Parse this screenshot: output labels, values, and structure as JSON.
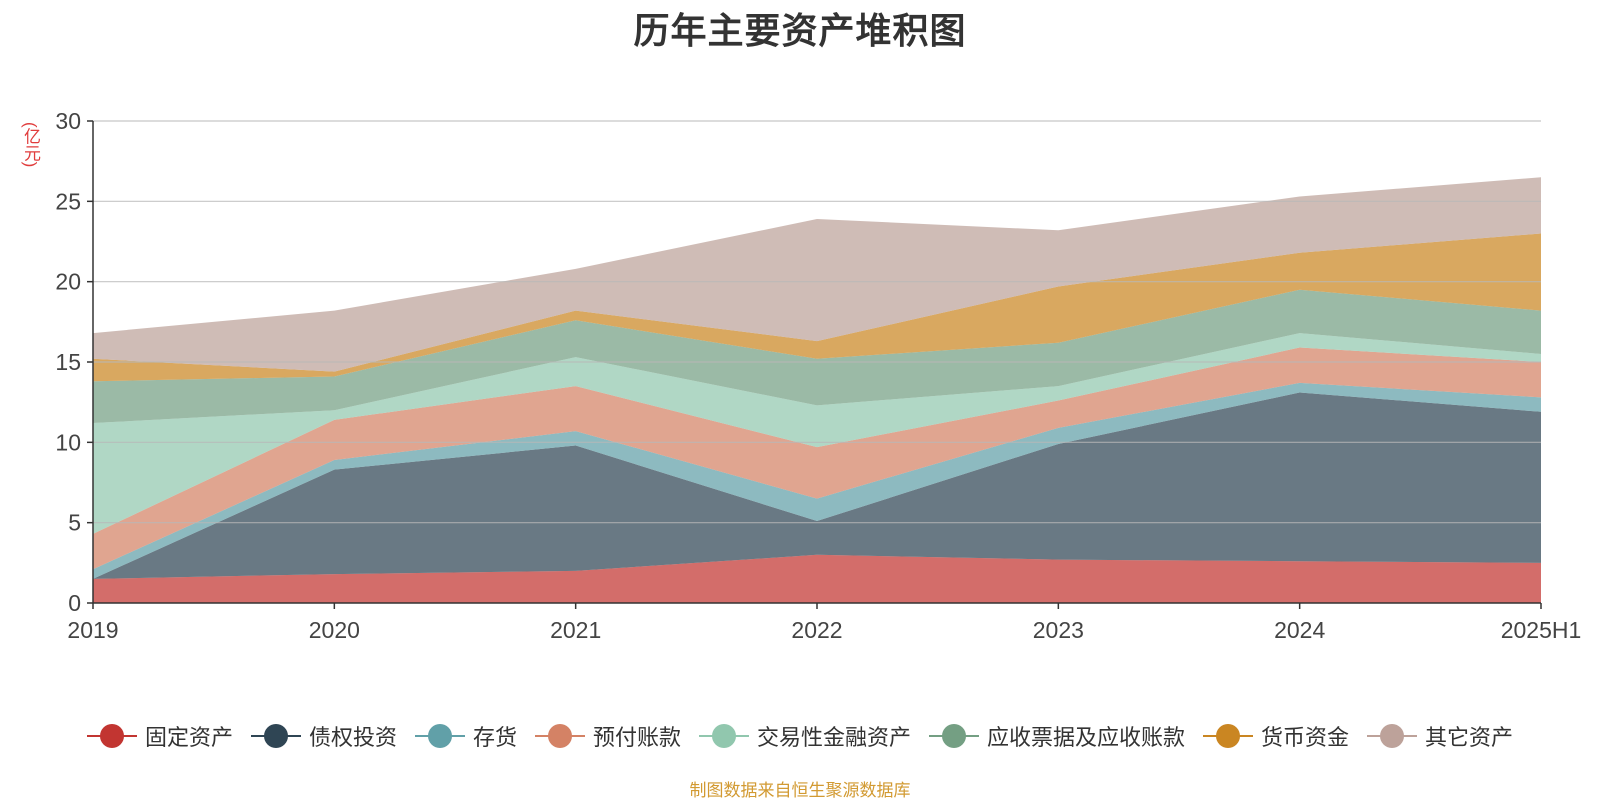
{
  "chart_data": {
    "type": "area",
    "stacked": true,
    "title": "历年主要资产堆积图",
    "ylabel": "(亿元)",
    "x": [
      "2019",
      "2020",
      "2021",
      "2022",
      "2023",
      "2024",
      "2025H1"
    ],
    "ylim": [
      0,
      30
    ],
    "yticks": [
      "0",
      "5",
      "10",
      "15",
      "20",
      "25",
      "30"
    ],
    "grid": true,
    "legend_position": "bottom",
    "series": [
      {
        "name": "固定资产",
        "color": "#c23531",
        "values": [
          1.5,
          1.8,
          2.0,
          3.0,
          2.7,
          2.6,
          2.5
        ]
      },
      {
        "name": "债权投资",
        "color": "#2f4554",
        "values": [
          0.0,
          6.5,
          7.8,
          2.1,
          7.2,
          10.5,
          9.4
        ]
      },
      {
        "name": "存货",
        "color": "#61a0a8",
        "values": [
          0.6,
          0.6,
          0.9,
          1.4,
          1.0,
          0.6,
          0.9
        ]
      },
      {
        "name": "预付账款",
        "color": "#d48265",
        "values": [
          2.2,
          2.5,
          2.8,
          3.2,
          1.7,
          2.2,
          2.2
        ]
      },
      {
        "name": "交易性金融资产",
        "color": "#91c7ae",
        "values": [
          6.9,
          0.6,
          1.8,
          2.6,
          0.9,
          0.9,
          0.5
        ]
      },
      {
        "name": "应收票据及应收账款",
        "color": "#749f83",
        "values": [
          2.6,
          2.1,
          2.3,
          2.9,
          2.7,
          2.7,
          2.7
        ]
      },
      {
        "name": "货币资金",
        "color": "#ca8622",
        "values": [
          1.4,
          0.3,
          0.6,
          1.1,
          3.5,
          2.3,
          4.8
        ]
      },
      {
        "name": "其它资产",
        "color": "#bda29a",
        "values": [
          1.6,
          3.8,
          2.6,
          7.6,
          3.5,
          3.5,
          3.5
        ]
      }
    ]
  },
  "footer": {
    "source": "制图数据来自恒生聚源数据库"
  }
}
